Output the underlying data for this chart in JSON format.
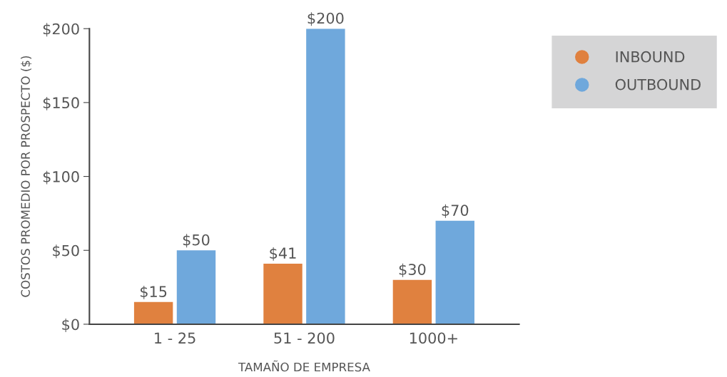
{
  "chart_data": {
    "type": "bar",
    "xlabel": "TAMAÑO DE EMPRESA",
    "ylabel": "COSTOS PROMEDIO POR PROSPECTO ($)",
    "categories": [
      "1 - 25",
      "51 - 200",
      "1000+"
    ],
    "series": [
      {
        "name": "INBOUND",
        "color": "#e0813f",
        "values": [
          15,
          41,
          30
        ],
        "value_labels": [
          "$15",
          "$41",
          "$30"
        ]
      },
      {
        "name": "OUTBOUND",
        "color": "#6fa8dc",
        "values": [
          50,
          200,
          70
        ],
        "value_labels": [
          "$50",
          "$200",
          "$70"
        ]
      }
    ],
    "ylim": [
      0,
      200
    ],
    "yticks": [
      {
        "value": 0,
        "label": "$0"
      },
      {
        "value": 50,
        "label": "$50"
      },
      {
        "value": 100,
        "label": "$100"
      },
      {
        "value": 150,
        "label": "$150"
      },
      {
        "value": 200,
        "label": "$200"
      }
    ],
    "grid": false,
    "legend": "top right",
    "marker": "circle"
  }
}
